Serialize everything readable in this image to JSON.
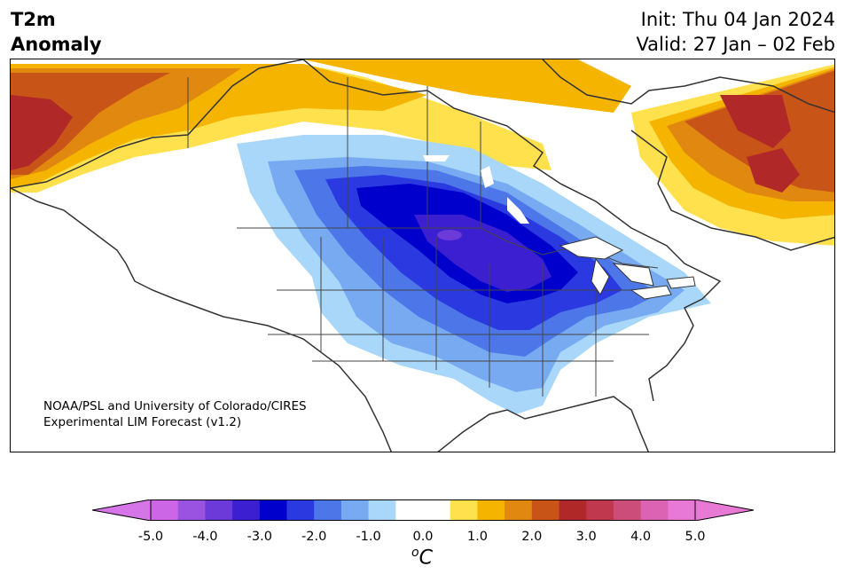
{
  "title": {
    "line1": "T2m",
    "line2": "Anomaly"
  },
  "info": {
    "init": "Init: Thu 04 Jan 2024",
    "valid": "Valid: 27 Jan – 02 Feb"
  },
  "credit": {
    "line1": "NOAA/PSL and University of Colorado/CIRES",
    "line2": "Experimental LIM Forecast (v1.2)"
  },
  "colorbar": {
    "unit_base": "o",
    "unit_main": "C",
    "ticks": [
      "-5.0",
      "-4.0",
      "-3.0",
      "-2.0",
      "-1.0",
      "0.0",
      "1.0",
      "2.0",
      "3.0",
      "4.0",
      "5.0"
    ],
    "colors": [
      "#cc66e6",
      "#9a52e0",
      "#6b3ad8",
      "#3b1fd1",
      "#0000cd",
      "#2a3ae0",
      "#4d77e8",
      "#78aaf2",
      "#a9d7f9",
      "#ffffff",
      "#ffffff",
      "#ffe04d",
      "#f4b400",
      "#e08810",
      "#c85418",
      "#b02828",
      "#c0384e",
      "#cc4d7a",
      "#dc62b4",
      "#e87ad6"
    ],
    "left_ext": "#d675e8",
    "right_ext": "#e87ad6"
  }
}
